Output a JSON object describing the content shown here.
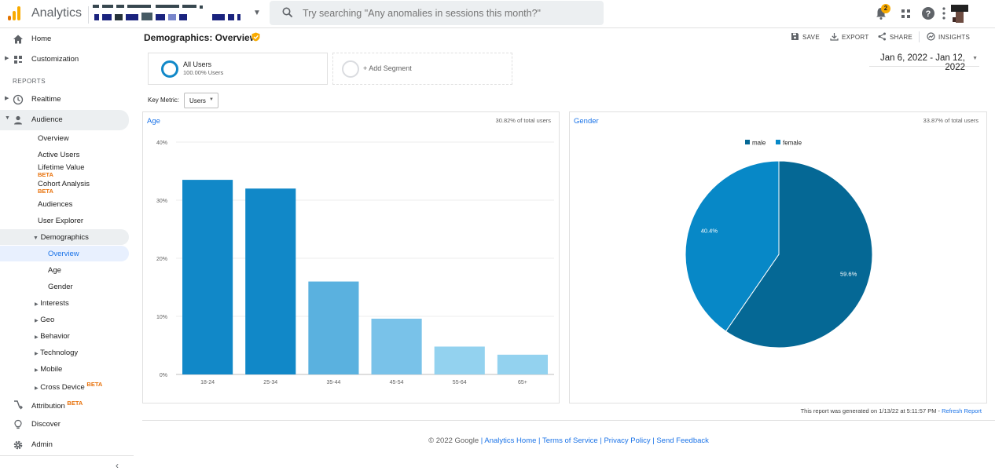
{
  "header": {
    "app_title": "Analytics",
    "search_placeholder": "Try searching \"Any anomalies in sessions this month?\"",
    "notification_count": "2"
  },
  "sidebar": {
    "home": "Home",
    "customization": "Customization",
    "reports_heading": "REPORTS",
    "realtime": "Realtime",
    "audience": "Audience",
    "audience_items": [
      {
        "label": "Overview"
      },
      {
        "label": "Active Users"
      },
      {
        "label": "Lifetime Value",
        "badge": "BETA"
      },
      {
        "label": "Cohort Analysis",
        "badge": "BETA"
      },
      {
        "label": "Audiences"
      },
      {
        "label": "User Explorer"
      },
      {
        "label": "Demographics"
      }
    ],
    "demographics_items": [
      "Overview",
      "Age",
      "Gender"
    ],
    "more_items": [
      {
        "label": "Interests"
      },
      {
        "label": "Geo"
      },
      {
        "label": "Behavior"
      },
      {
        "label": "Technology"
      },
      {
        "label": "Mobile"
      },
      {
        "label": "Cross Device",
        "badge": "BETA"
      }
    ],
    "attribution": "Attribution",
    "attribution_badge": "BETA",
    "discover": "Discover",
    "admin": "Admin"
  },
  "main": {
    "title": "Demographics: Overview",
    "actions": {
      "save": "SAVE",
      "export": "EXPORT",
      "share": "SHARE",
      "insights": "INSIGHTS"
    },
    "segment": {
      "name": "All Users",
      "sub": "100.00% Users",
      "add_label": "+ Add Segment"
    },
    "date_range": "Jan 6, 2022 - Jan 12, 2022",
    "key_metric_label": "Key Metric:",
    "key_metric_value": "Users",
    "age_card": {
      "title": "Age",
      "pct": "30.82% of total users"
    },
    "gender_card": {
      "title": "Gender",
      "pct": "33.87% of total users"
    },
    "report_note": "This report was generated on 1/13/22 at 5:11:57 PM - ",
    "refresh_link": "Refresh Report"
  },
  "footer": {
    "copyright": "© 2022 Google",
    "links": [
      "Analytics Home",
      "Terms of Service",
      "Privacy Policy",
      "Send Feedback"
    ]
  },
  "colors": {
    "primary_blue": "#1a73e8",
    "beta_orange": "#e8710a"
  },
  "chart_data": [
    {
      "type": "bar",
      "title": "Age",
      "categories": [
        "18-24",
        "25-34",
        "35-44",
        "45-54",
        "55-64",
        "65+"
      ],
      "values": [
        33.5,
        32.0,
        16.0,
        9.6,
        4.8,
        3.4
      ],
      "colors": [
        "#1188c8",
        "#1188c8",
        "#5ab1df",
        "#79c2e9",
        "#93d2ef",
        "#93d2ef"
      ],
      "ylim": [
        0,
        40
      ],
      "yticks": [
        0,
        10,
        20,
        30,
        40
      ],
      "ytick_labels": [
        "0%",
        "10%",
        "20%",
        "30%",
        "40%"
      ],
      "grid": true
    },
    {
      "type": "pie",
      "title": "Gender",
      "labels": [
        "male",
        "female"
      ],
      "values": [
        59.6,
        40.4
      ],
      "data_labels": [
        "59.6%",
        "40.4%"
      ],
      "colors": [
        "#056895",
        "#0788c7"
      ],
      "legend": "top"
    }
  ]
}
